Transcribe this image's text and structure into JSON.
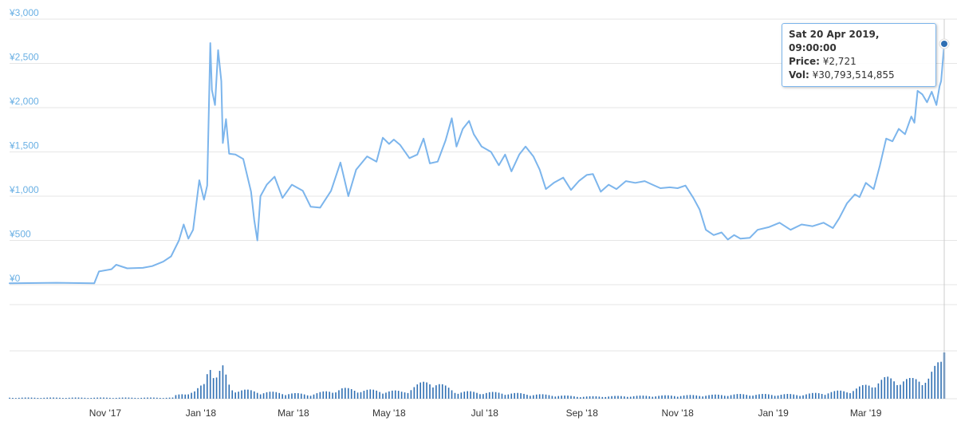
{
  "chart_data": {
    "type": "line",
    "currency_symbol": "¥",
    "line_color": "#7cb5ec",
    "volume_color": "#2f6fb3",
    "y_ticks": [
      "¥0",
      "¥500",
      "¥1,000",
      "¥1,500",
      "¥2,000",
      "¥2,500",
      "¥3,000"
    ],
    "ylim": [
      0,
      3000
    ],
    "x_ticks": [
      "Nov '17",
      "Jan '18",
      "Mar '18",
      "May '18",
      "Jul '18",
      "Sep '18",
      "Nov '18",
      "Jan '19",
      "Mar '19"
    ],
    "x_tick_dates": [
      "2017-11-01",
      "2018-01-01",
      "2018-03-01",
      "2018-05-01",
      "2018-07-01",
      "2018-09-01",
      "2018-11-01",
      "2019-01-01",
      "2019-03-01"
    ],
    "xlim": [
      "2017-09-01",
      "2019-04-20"
    ],
    "grid": true,
    "series": [
      {
        "values": [
          [
            "2017-09-01",
            15
          ],
          [
            "2017-10-01",
            22
          ],
          [
            "2017-10-25",
            16
          ],
          [
            "2017-10-28",
            150
          ],
          [
            "2017-11-05",
            175
          ],
          [
            "2017-11-08",
            225
          ],
          [
            "2017-11-15",
            185
          ],
          [
            "2017-11-25",
            190
          ],
          [
            "2017-12-01",
            210
          ],
          [
            "2017-12-08",
            260
          ],
          [
            "2017-12-13",
            320
          ],
          [
            "2017-12-18",
            500
          ],
          [
            "2017-12-21",
            680
          ],
          [
            "2017-12-24",
            520
          ],
          [
            "2017-12-27",
            620
          ],
          [
            "2017-12-31",
            1180
          ],
          [
            "2018-01-03",
            960
          ],
          [
            "2018-01-05",
            1120
          ],
          [
            "2018-01-07",
            2730
          ],
          [
            "2018-01-08",
            2200
          ],
          [
            "2018-01-10",
            2030
          ],
          [
            "2018-01-12",
            2650
          ],
          [
            "2018-01-14",
            2300
          ],
          [
            "2018-01-15",
            1600
          ],
          [
            "2018-01-17",
            1870
          ],
          [
            "2018-01-19",
            1480
          ],
          [
            "2018-01-23",
            1470
          ],
          [
            "2018-01-28",
            1420
          ],
          [
            "2018-02-02",
            1050
          ],
          [
            "2018-02-04",
            730
          ],
          [
            "2018-02-06",
            500
          ],
          [
            "2018-02-08",
            1000
          ],
          [
            "2018-02-12",
            1130
          ],
          [
            "2018-02-17",
            1220
          ],
          [
            "2018-02-22",
            980
          ],
          [
            "2018-02-28",
            1130
          ],
          [
            "2018-03-07",
            1060
          ],
          [
            "2018-03-12",
            880
          ],
          [
            "2018-03-18",
            870
          ],
          [
            "2018-03-25",
            1060
          ],
          [
            "2018-03-31",
            1380
          ],
          [
            "2018-04-05",
            1000
          ],
          [
            "2018-04-10",
            1300
          ],
          [
            "2018-04-17",
            1450
          ],
          [
            "2018-04-23",
            1390
          ],
          [
            "2018-04-27",
            1660
          ],
          [
            "2018-05-01",
            1590
          ],
          [
            "2018-05-04",
            1640
          ],
          [
            "2018-05-08",
            1580
          ],
          [
            "2018-05-14",
            1430
          ],
          [
            "2018-05-19",
            1470
          ],
          [
            "2018-05-23",
            1650
          ],
          [
            "2018-05-27",
            1370
          ],
          [
            "2018-06-01",
            1390
          ],
          [
            "2018-06-06",
            1630
          ],
          [
            "2018-06-10",
            1880
          ],
          [
            "2018-06-13",
            1560
          ],
          [
            "2018-06-17",
            1760
          ],
          [
            "2018-06-21",
            1850
          ],
          [
            "2018-06-24",
            1700
          ],
          [
            "2018-06-29",
            1560
          ],
          [
            "2018-07-05",
            1500
          ],
          [
            "2018-07-10",
            1350
          ],
          [
            "2018-07-14",
            1470
          ],
          [
            "2018-07-18",
            1280
          ],
          [
            "2018-07-23",
            1470
          ],
          [
            "2018-07-27",
            1560
          ],
          [
            "2018-08-01",
            1450
          ],
          [
            "2018-08-05",
            1300
          ],
          [
            "2018-08-09",
            1080
          ],
          [
            "2018-08-14",
            1150
          ],
          [
            "2018-08-20",
            1210
          ],
          [
            "2018-08-25",
            1070
          ],
          [
            "2018-08-30",
            1170
          ],
          [
            "2018-09-04",
            1240
          ],
          [
            "2018-09-08",
            1250
          ],
          [
            "2018-09-13",
            1050
          ],
          [
            "2018-09-18",
            1130
          ],
          [
            "2018-09-23",
            1080
          ],
          [
            "2018-09-29",
            1170
          ],
          [
            "2018-10-05",
            1150
          ],
          [
            "2018-10-11",
            1170
          ],
          [
            "2018-10-16",
            1130
          ],
          [
            "2018-10-21",
            1090
          ],
          [
            "2018-10-27",
            1100
          ],
          [
            "2018-11-01",
            1090
          ],
          [
            "2018-11-06",
            1120
          ],
          [
            "2018-11-11",
            980
          ],
          [
            "2018-11-15",
            850
          ],
          [
            "2018-11-19",
            620
          ],
          [
            "2018-11-24",
            560
          ],
          [
            "2018-11-29",
            590
          ],
          [
            "2018-12-03",
            510
          ],
          [
            "2018-12-07",
            560
          ],
          [
            "2018-12-11",
            520
          ],
          [
            "2018-12-17",
            530
          ],
          [
            "2018-12-22",
            620
          ],
          [
            "2018-12-29",
            650
          ],
          [
            "2019-01-05",
            700
          ],
          [
            "2019-01-12",
            620
          ],
          [
            "2019-01-19",
            680
          ],
          [
            "2019-01-26",
            660
          ],
          [
            "2019-02-02",
            700
          ],
          [
            "2019-02-08",
            640
          ],
          [
            "2019-02-12",
            750
          ],
          [
            "2019-02-17",
            920
          ],
          [
            "2019-02-22",
            1020
          ],
          [
            "2019-02-25",
            990
          ],
          [
            "2019-03-01",
            1150
          ],
          [
            "2019-03-06",
            1080
          ],
          [
            "2019-03-10",
            1350
          ],
          [
            "2019-03-14",
            1650
          ],
          [
            "2019-03-18",
            1620
          ],
          [
            "2019-03-22",
            1760
          ],
          [
            "2019-03-26",
            1700
          ],
          [
            "2019-03-30",
            1900
          ],
          [
            "2019-04-01",
            1830
          ],
          [
            "2019-04-03",
            2190
          ],
          [
            "2019-04-06",
            2150
          ],
          [
            "2019-04-09",
            2060
          ],
          [
            "2019-04-12",
            2180
          ],
          [
            "2019-04-15",
            2030
          ],
          [
            "2019-04-17",
            2240
          ],
          [
            "2019-04-18",
            2300
          ],
          [
            "2019-04-20",
            2721
          ]
        ]
      }
    ],
    "volume": [
      [
        "2017-12-15",
        4
      ],
      [
        "2017-12-22",
        8
      ],
      [
        "2017-12-28",
        10
      ],
      [
        "2018-01-03",
        20
      ],
      [
        "2018-01-07",
        58
      ],
      [
        "2018-01-10",
        30
      ],
      [
        "2018-01-15",
        42
      ],
      [
        "2018-01-20",
        14
      ],
      [
        "2018-02-06",
        10
      ],
      [
        "2018-03-12",
        6
      ],
      [
        "2018-04-01",
        14
      ],
      [
        "2018-04-15",
        12
      ],
      [
        "2018-05-10",
        10
      ],
      [
        "2018-05-27",
        26
      ],
      [
        "2018-06-13",
        10
      ],
      [
        "2018-07-15",
        8
      ],
      [
        "2018-09-01",
        3
      ],
      [
        "2018-11-20",
        5
      ],
      [
        "2018-12-10",
        6
      ],
      [
        "2019-01-20",
        6
      ],
      [
        "2019-02-20",
        12
      ],
      [
        "2019-03-14",
        28
      ],
      [
        "2019-03-30",
        26
      ],
      [
        "2019-04-10",
        30
      ],
      [
        "2019-04-20",
        58
      ]
    ],
    "tooltip": {
      "title": "Sat 20 Apr 2019, 09:00:00",
      "price_label": "Price:",
      "price_value": "¥2,721",
      "vol_label": "Vol:",
      "vol_value": "¥30,793,514,855"
    }
  }
}
